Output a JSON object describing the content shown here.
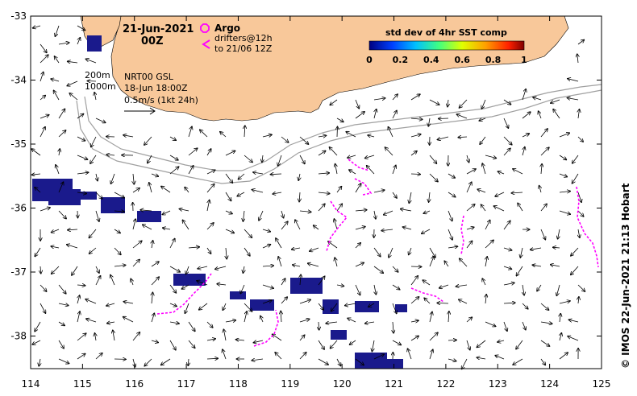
{
  "map": {
    "date_line1": "21-Jun-2021",
    "date_line2": "00Z",
    "argo_label": "Argo",
    "drifters_line1": "drifters@12h",
    "drifters_line2": "to 21/06 12Z",
    "isobath_200": "200m",
    "isobath_1000": "1000m",
    "model_line1": "NRT00 GSL",
    "model_line2": "18-Jun 18:00Z",
    "scale_label": "0.5m/s (1kt 24h)",
    "colorbar_title": "std dev of 4hr SST comp",
    "colorbar_ticks": [
      "0",
      "0.2",
      "0.4",
      "0.6",
      "0.8",
      "1"
    ],
    "credit": "© IMOS 22-Jun-2021 21:13 Hobart",
    "x_ticks": [
      "114",
      "115",
      "116",
      "117",
      "118",
      "119",
      "120",
      "121",
      "122",
      "123",
      "124",
      "125"
    ],
    "y_ticks": [
      "-33",
      "-34",
      "-35",
      "-36",
      "-37",
      "-38"
    ],
    "colors": {
      "land": "#f8c89a",
      "drifter": "#ff00ff",
      "sst_patch": "#1a1a8c",
      "isobath": "#a0a0a0"
    },
    "icons": {
      "argo_marker": "magenta-octagon",
      "drifter_marker": "magenta-chevron"
    }
  }
}
